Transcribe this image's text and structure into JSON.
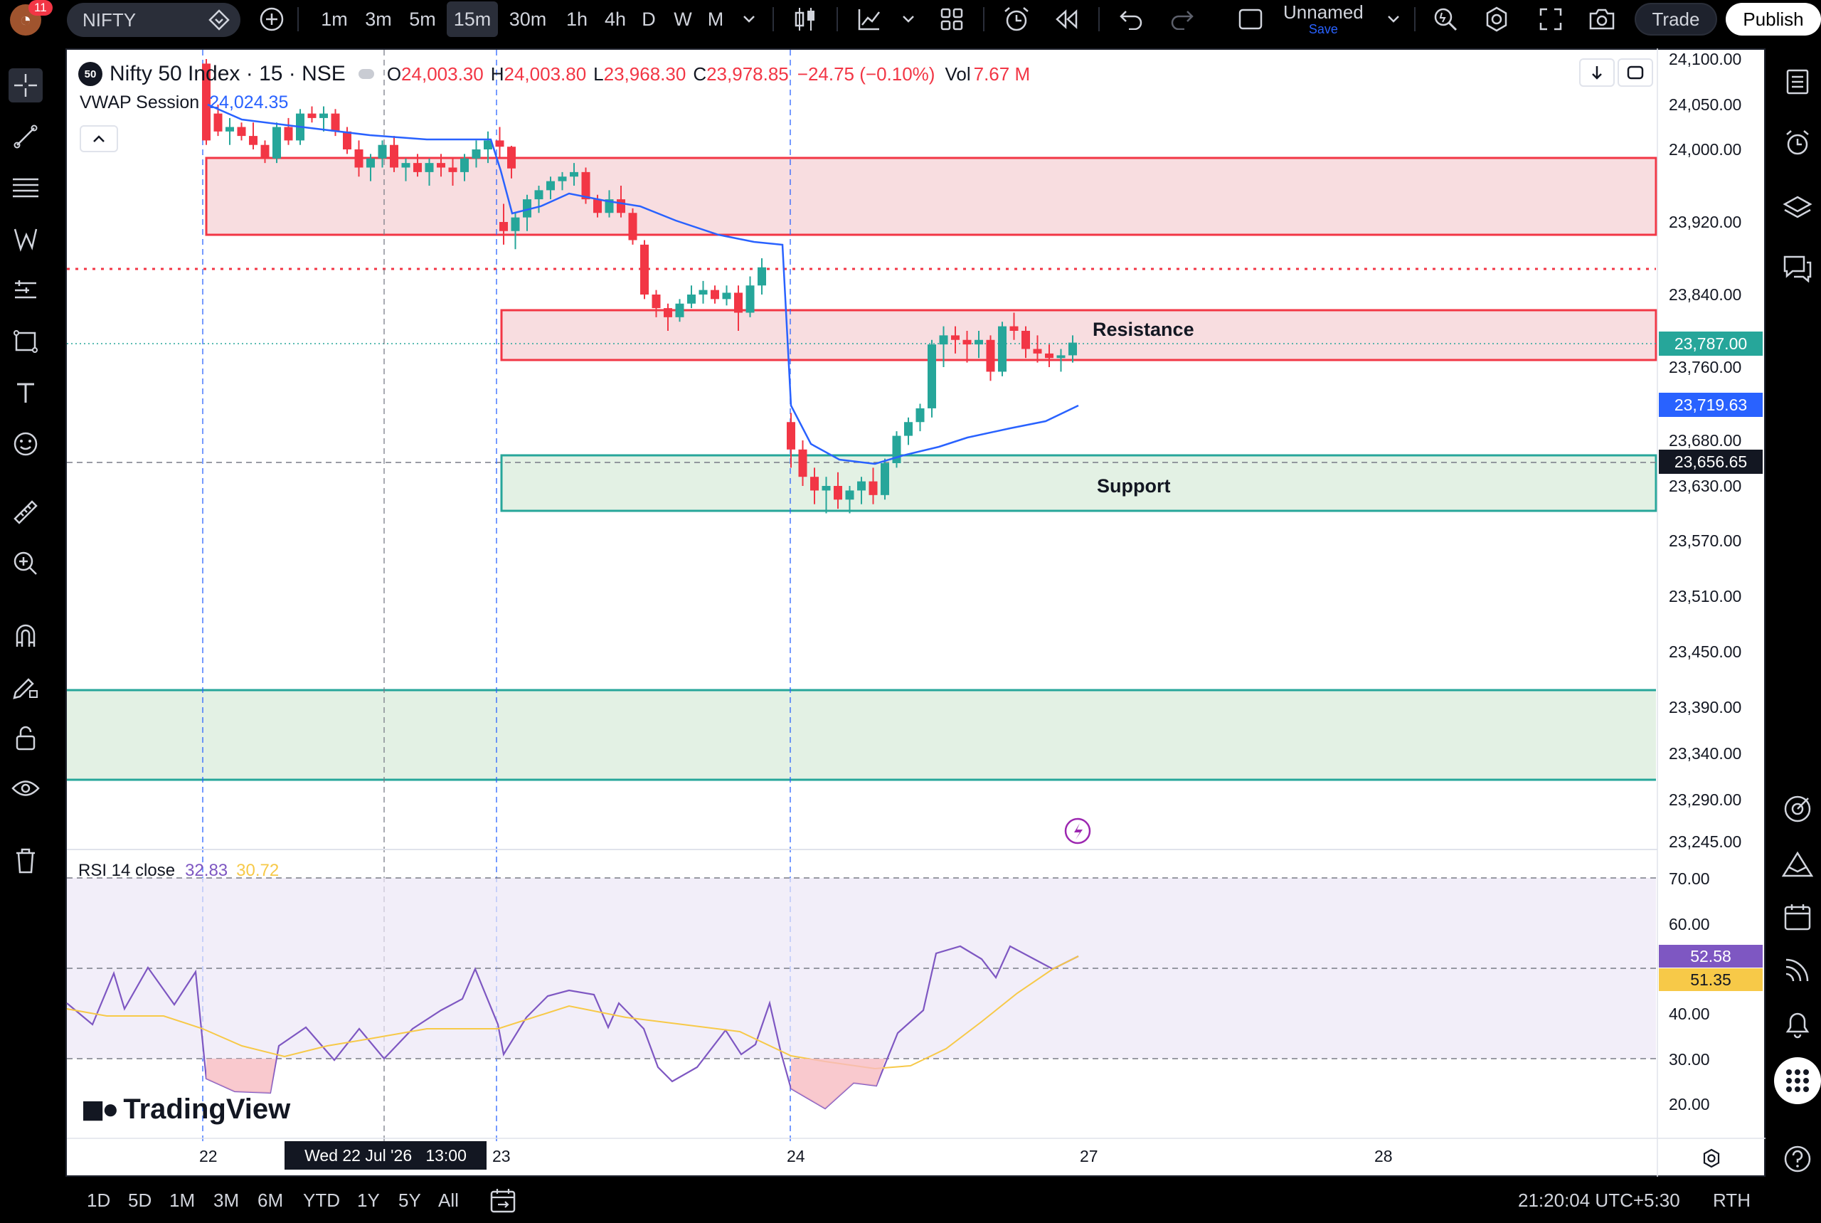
{
  "header": {
    "notification_count": "11",
    "symbol": "NIFTY",
    "intervals": [
      "1m",
      "3m",
      "5m",
      "15m",
      "30m",
      "1h",
      "4h",
      "D",
      "W",
      "M"
    ],
    "active_interval": "15m",
    "layout_name": "Unnamed",
    "save_label": "Save",
    "trade_label": "Trade",
    "publish_label": "Publish"
  },
  "legend": {
    "symbol_badge": "50",
    "title": "Nifty 50 Index · 15 · NSE",
    "open_label": "O",
    "open": "24,003.30",
    "high_label": "H",
    "high": "24,003.80",
    "low_label": "L",
    "low": "23,968.30",
    "close_label": "C",
    "close": "23,978.85",
    "change": "−24.75 (−0.10%)",
    "vol_label": "Vol",
    "volume": "7.67 M",
    "vwap_label": "VWAP Session",
    "vwap_value": "24,024.35"
  },
  "rsi_legend": {
    "label": "RSI 14 close",
    "rsi_value": "32.83",
    "ma_value": "30.72"
  },
  "brand": "TradingView",
  "zones": {
    "resistance_label": "Resistance",
    "support_label": "Support"
  },
  "price_axis": {
    "labels": [
      "24,100.00",
      "24,050.00",
      "24,000.00",
      "23,920.00",
      "23,840.00",
      "23,760.00",
      "23,680.00",
      "23,630.00",
      "23,570.00",
      "23,510.00",
      "23,450.00",
      "23,390.00",
      "23,340.00",
      "23,290.00",
      "23,245.00"
    ],
    "last_price_tag": "23,787.00",
    "vwap_tag": "23,719.63",
    "crosshair_tag": "23,656.65"
  },
  "rsi_axis": {
    "labels": [
      "70.00",
      "60.00",
      "40.00",
      "30.00",
      "20.00"
    ],
    "rsi_tag": "52.58",
    "ma_tag": "51.35"
  },
  "time_axis": {
    "labels": [
      "22",
      "23",
      "24",
      "27",
      "28"
    ],
    "crosshair_label": "Wed 22 Jul '26",
    "crosshair_time": "13:00"
  },
  "bottom": {
    "ranges": [
      "1D",
      "5D",
      "1M",
      "3M",
      "6M",
      "YTD",
      "1Y",
      "5Y",
      "All"
    ],
    "clock": "21:20:04 UTC+5:30",
    "session": "RTH"
  },
  "colors": {
    "up": "#26a69a",
    "down": "#f23645",
    "vwap": "#2962ff",
    "rsi": "#7e57c2",
    "rsi_ma": "#f7c948",
    "last_price": "#26a69a",
    "resistance_fill": "#f8dde0",
    "support_fill": "#e3f1e4"
  },
  "chart_data": {
    "type": "candlestick",
    "series": [
      {
        "name": "Nifty 50 Index · 15 · NSE",
        "type": "candlestick",
        "ohlc_approx": [
          [
            24095,
            24100,
            24005,
            24010
          ],
          [
            24040,
            24050,
            24015,
            24020
          ],
          [
            24020,
            24035,
            24005,
            24025
          ],
          [
            24025,
            24030,
            24010,
            24015
          ],
          [
            24015,
            24030,
            24000,
            24005
          ],
          [
            24005,
            24010,
            23985,
            23990
          ],
          [
            23990,
            24030,
            23985,
            24025
          ],
          [
            24025,
            24035,
            24005,
            24010
          ],
          [
            24010,
            24045,
            24005,
            24040
          ],
          [
            24040,
            24048,
            24030,
            24035
          ],
          [
            24035,
            24048,
            24020,
            24040
          ],
          [
            24040,
            24045,
            24015,
            24020
          ],
          [
            24020,
            24025,
            23995,
            24000
          ],
          [
            24000,
            24010,
            23970,
            23980
          ],
          [
            23980,
            23995,
            23965,
            23990
          ],
          [
            23990,
            24010,
            23980,
            24005
          ],
          [
            24005,
            24015,
            23975,
            23980
          ],
          [
            23980,
            23990,
            23965,
            23985
          ],
          [
            23985,
            23995,
            23970,
            23975
          ],
          [
            23975,
            23990,
            23960,
            23985
          ],
          [
            23985,
            23995,
            23970,
            23980
          ],
          [
            23980,
            23990,
            23960,
            23975
          ],
          [
            23975,
            23995,
            23965,
            23990
          ],
          [
            23990,
            24010,
            23980,
            24000
          ],
          [
            24000,
            24020,
            23985,
            24010
          ],
          [
            24010,
            24025,
            23990,
            24003
          ],
          [
            24003,
            24004,
            23968,
            23979
          ],
          [
            23920,
            23940,
            23895,
            23910
          ],
          [
            23910,
            23930,
            23890,
            23925
          ],
          [
            23925,
            23950,
            23910,
            23945
          ],
          [
            23945,
            23960,
            23930,
            23955
          ],
          [
            23955,
            23970,
            23945,
            23965
          ],
          [
            23965,
            23975,
            23955,
            23970
          ],
          [
            23970,
            23985,
            23960,
            23975
          ],
          [
            23975,
            23980,
            23940,
            23945
          ],
          [
            23945,
            23950,
            23925,
            23930
          ],
          [
            23930,
            23955,
            23925,
            23945
          ],
          [
            23945,
            23960,
            23925,
            23930
          ],
          [
            23930,
            23935,
            23895,
            23900
          ],
          [
            23895,
            23900,
            23835,
            23840
          ],
          [
            23840,
            23845,
            23815,
            23825
          ],
          [
            23825,
            23830,
            23800,
            23815
          ],
          [
            23815,
            23835,
            23810,
            23830
          ],
          [
            23830,
            23850,
            23825,
            23840
          ],
          [
            23840,
            23855,
            23830,
            23845
          ],
          [
            23845,
            23850,
            23830,
            23835
          ],
          [
            23835,
            23850,
            23828,
            23842
          ],
          [
            23842,
            23850,
            23800,
            23820
          ],
          [
            23820,
            23860,
            23815,
            23850
          ],
          [
            23850,
            23880,
            23840,
            23870
          ],
          [
            23700,
            23710,
            23650,
            23670
          ],
          [
            23670,
            23680,
            23630,
            23640
          ],
          [
            23640,
            23650,
            23610,
            23625
          ],
          [
            23625,
            23640,
            23600,
            23630
          ],
          [
            23630,
            23645,
            23605,
            23615
          ],
          [
            23615,
            23630,
            23600,
            23625
          ],
          [
            23625,
            23640,
            23610,
            23635
          ],
          [
            23635,
            23650,
            23610,
            23620
          ],
          [
            23620,
            23660,
            23615,
            23655
          ],
          [
            23655,
            23690,
            23650,
            23685
          ],
          [
            23685,
            23705,
            23675,
            23700
          ],
          [
            23700,
            23720,
            23690,
            23715
          ],
          [
            23715,
            23790,
            23705,
            23785
          ],
          [
            23785,
            23805,
            23760,
            23795
          ],
          [
            23795,
            23805,
            23775,
            23790
          ],
          [
            23790,
            23800,
            23765,
            23785
          ],
          [
            23785,
            23800,
            23770,
            23790
          ],
          [
            23790,
            23795,
            23745,
            23755
          ],
          [
            23755,
            23810,
            23750,
            23805
          ],
          [
            23805,
            23820,
            23790,
            23800
          ],
          [
            23800,
            23805,
            23770,
            23780
          ],
          [
            23780,
            23795,
            23765,
            23775
          ],
          [
            23775,
            23785,
            23760,
            23770
          ],
          [
            23770,
            23780,
            23755,
            23773
          ],
          [
            23773,
            23795,
            23765,
            23787
          ]
        ]
      },
      {
        "name": "VWAP Session",
        "type": "line"
      },
      {
        "name": "RSI 14 close",
        "type": "line"
      }
    ],
    "x_ticks": [
      "22",
      "23",
      "24",
      "27",
      "28"
    ],
    "y_ticks": [
      "24,100.00",
      "24,050.00",
      "24,000.00",
      "23,920.00",
      "23,840.00",
      "23,760.00",
      "23,680.00",
      "23,630.00",
      "23,570.00",
      "23,510.00",
      "23,450.00",
      "23,390.00",
      "23,340.00",
      "23,290.00",
      "23,245.00"
    ],
    "rsi_levels": [
      70,
      30
    ],
    "annotations": [
      "Resistance",
      "Support"
    ],
    "grid": false
  }
}
